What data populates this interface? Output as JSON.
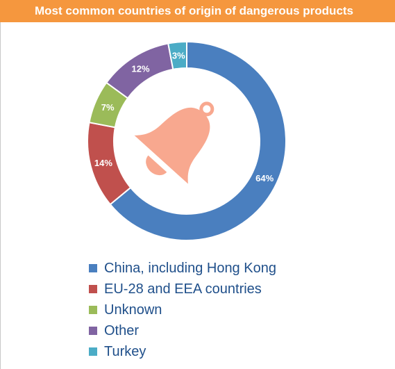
{
  "chart_data": {
    "type": "pie",
    "title": "Most common countries of origin of dangerous products",
    "categories": [
      "China, including Hong Kong",
      "EU-28 and EEA countries",
      "Unknown",
      "Other",
      "Turkey"
    ],
    "values": [
      64,
      14,
      7,
      12,
      3
    ],
    "labels": [
      "64%",
      "14%",
      "7%",
      "12%",
      "3%"
    ],
    "colors": [
      "#4a7fbf",
      "#c0504d",
      "#9bbb59",
      "#8064a2",
      "#4bacc6"
    ],
    "legend": "bottom",
    "style": "donut",
    "center_icon": "bell-icon",
    "icon_color": "#f8a88f"
  }
}
